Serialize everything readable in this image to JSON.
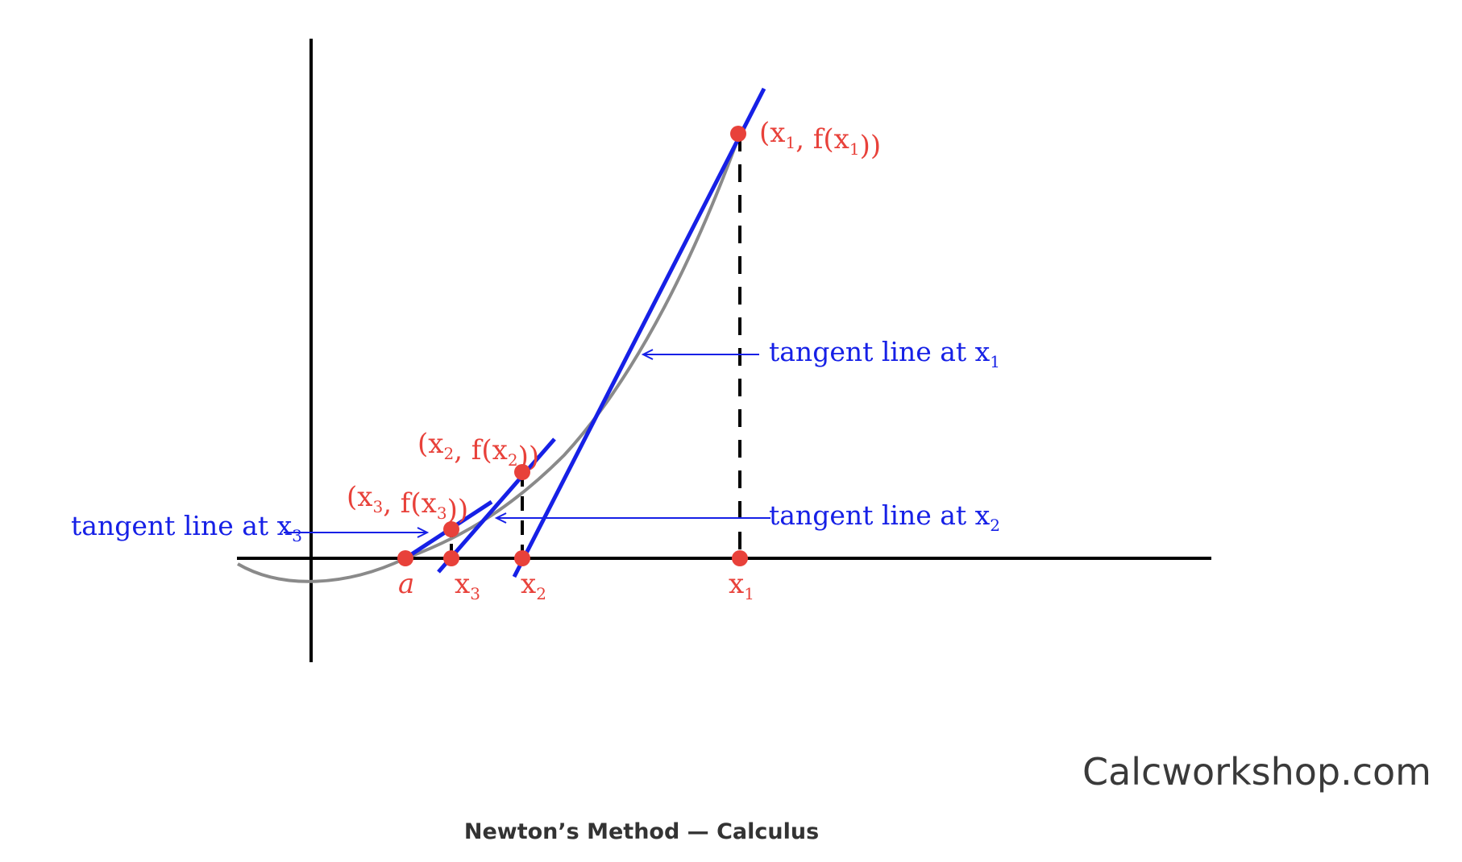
{
  "diagram": {
    "points": {
      "p1": "(x1, f(x1))",
      "p2": "(x2, f(x2))",
      "p3": "(x3, f(x3))"
    },
    "axis_labels": {
      "a": "a",
      "x1": "x1",
      "x2": "x2",
      "x3": "x3"
    },
    "tangent_labels": {
      "t1": "tangent line at x1",
      "t2": "tangent line at x2",
      "t3": "tangent line at x3"
    }
  },
  "brand": "Calcworkshop.com",
  "caption": "Newton’s Method — Calculus",
  "colors": {
    "tangent": "#1620e6",
    "point": "#e8413a",
    "curve": "#8a8a8a",
    "axis": "#000000"
  }
}
